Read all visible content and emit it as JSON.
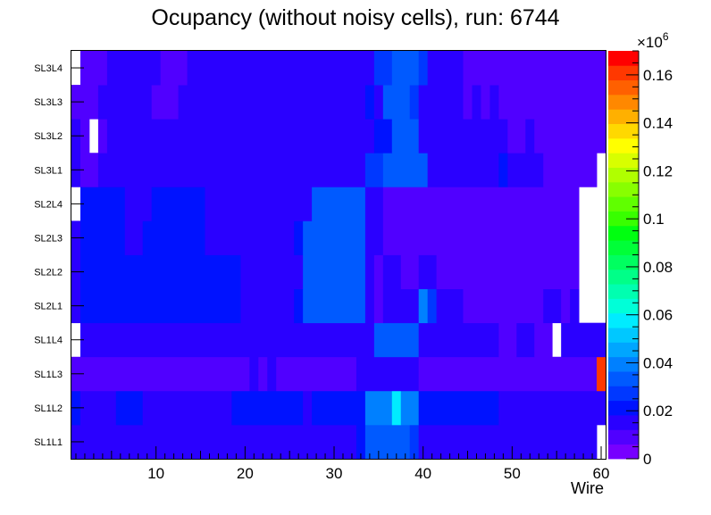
{
  "chart_data": {
    "type": "heatmap",
    "title": "Ocupancy (without noisy cells), run: 6744",
    "xlabel": "Wire",
    "ylabel": "",
    "x_range": [
      0.5,
      60.5
    ],
    "x_ticks": [
      10,
      20,
      30,
      40,
      50,
      60
    ],
    "y_categories": [
      "SL1L1",
      "SL1L2",
      "SL1L3",
      "SL1L4",
      "SL2L1",
      "SL2L2",
      "SL2L3",
      "SL2L4",
      "SL3L1",
      "SL3L2",
      "SL3L3",
      "SL3L4"
    ],
    "z_range": [
      0,
      0.17
    ],
    "z_ticks": [
      0,
      0.02,
      0.04,
      0.06,
      0.08,
      0.1,
      0.12,
      0.14,
      0.16
    ],
    "z_multiplier": "×10",
    "z_exponent": "6",
    "palette": [
      "#7700ff",
      "#5000ff",
      "#2a00ff",
      "#0012ff",
      "#0038ff",
      "#005aff",
      "#0080ff",
      "#00a6ff",
      "#00c8ff",
      "#00ecff",
      "#00ffd8",
      "#00ffb0",
      "#00ff88",
      "#00ff60",
      "#00ff38",
      "#00ff10",
      "#38ff00",
      "#60ff00",
      "#88ff00",
      "#b0ff00",
      "#d8ff00",
      "#ffff00",
      "#ffd800",
      "#ffb000",
      "#ff8800",
      "#ff6000",
      "#ff3800",
      "#ff0000"
    ],
    "rows": {
      "SL1L1": [
        [
          1,
          32,
          0.014
        ],
        [
          33,
          33,
          0.02
        ],
        [
          34,
          38,
          0.032
        ],
        [
          39,
          39,
          0.028
        ],
        [
          40,
          59,
          0.014
        ],
        [
          60,
          60,
          0
        ],
        [
          61,
          61,
          0.014
        ]
      ],
      "SL1L2": [
        [
          1,
          1,
          0.02
        ],
        [
          2,
          5,
          0.014
        ],
        [
          6,
          8,
          0.022
        ],
        [
          9,
          18,
          0.014
        ],
        [
          19,
          26,
          0.021
        ],
        [
          27,
          27,
          0.014
        ],
        [
          28,
          33,
          0.021
        ],
        [
          34,
          36,
          0.042
        ],
        [
          37,
          37,
          0.055
        ],
        [
          38,
          39,
          0.042
        ],
        [
          40,
          48,
          0.02
        ],
        [
          49,
          61,
          0.014
        ]
      ],
      "SL1L3": [
        [
          1,
          20,
          0.009
        ],
        [
          21,
          21,
          0.014
        ],
        [
          22,
          22,
          0.009
        ],
        [
          23,
          23,
          0.014
        ],
        [
          24,
          32,
          0.009
        ],
        [
          33,
          39,
          0.014
        ],
        [
          40,
          59,
          0.009
        ],
        [
          60,
          60,
          0.16
        ],
        [
          61,
          61,
          0.009
        ]
      ],
      "SL1L4": [
        [
          1,
          1,
          0
        ],
        [
          2,
          34,
          0.014
        ],
        [
          35,
          39,
          0.032
        ],
        [
          40,
          48,
          0.014
        ],
        [
          49,
          50,
          0.009
        ],
        [
          51,
          52,
          0.014
        ],
        [
          53,
          54,
          0.009
        ],
        [
          55,
          55,
          0
        ],
        [
          56,
          61,
          0.014
        ]
      ],
      "SL2L1": [
        [
          1,
          1,
          0.014
        ],
        [
          2,
          19,
          0.021
        ],
        [
          20,
          25,
          0.014
        ],
        [
          26,
          26,
          0.021
        ],
        [
          27,
          33,
          0.032
        ],
        [
          34,
          34,
          0.014
        ],
        [
          35,
          35,
          0.009
        ],
        [
          36,
          39,
          0.014
        ],
        [
          40,
          40,
          0.042
        ],
        [
          41,
          41,
          0.03
        ],
        [
          42,
          44,
          0.014
        ],
        [
          45,
          53,
          0.009
        ],
        [
          54,
          55,
          0.014
        ],
        [
          56,
          56,
          0.009
        ],
        [
          57,
          57,
          0.014
        ],
        [
          58,
          61,
          0
        ]
      ],
      "SL2L2": [
        [
          1,
          1,
          0.014
        ],
        [
          2,
          2,
          0.021
        ],
        [
          3,
          7,
          0.024
        ],
        [
          8,
          19,
          0.021
        ],
        [
          20,
          26,
          0.014
        ],
        [
          27,
          33,
          0.032
        ],
        [
          34,
          34,
          0.014
        ],
        [
          35,
          35,
          0.009
        ],
        [
          36,
          37,
          0.014
        ],
        [
          38,
          39,
          0.009
        ],
        [
          40,
          41,
          0.014
        ],
        [
          42,
          53,
          0.009
        ],
        [
          54,
          56,
          0.009
        ],
        [
          57,
          57,
          0.009
        ],
        [
          58,
          61,
          0
        ]
      ],
      "SL2L3": [
        [
          1,
          1,
          0.014
        ],
        [
          2,
          2,
          0.021
        ],
        [
          3,
          6,
          0.024
        ],
        [
          7,
          8,
          0.014
        ],
        [
          9,
          15,
          0.021
        ],
        [
          16,
          25,
          0.014
        ],
        [
          26,
          26,
          0.021
        ],
        [
          27,
          33,
          0.032
        ],
        [
          34,
          35,
          0.014
        ],
        [
          36,
          56,
          0.009
        ],
        [
          57,
          57,
          0.009
        ],
        [
          58,
          61,
          0
        ]
      ],
      "SL2L4": [
        [
          1,
          1,
          0
        ],
        [
          2,
          2,
          0.021
        ],
        [
          3,
          6,
          0.024
        ],
        [
          7,
          9,
          0.014
        ],
        [
          10,
          15,
          0.021
        ],
        [
          16,
          27,
          0.014
        ],
        [
          28,
          33,
          0.032
        ],
        [
          34,
          35,
          0.014
        ],
        [
          36,
          53,
          0.009
        ],
        [
          54,
          56,
          0.009
        ],
        [
          57,
          57,
          0.009
        ],
        [
          58,
          61,
          0
        ]
      ],
      "SL3L1": [
        [
          1,
          1,
          0.014
        ],
        [
          2,
          3,
          0.009
        ],
        [
          4,
          33,
          0.014
        ],
        [
          34,
          35,
          0.027
        ],
        [
          36,
          40,
          0.036
        ],
        [
          41,
          48,
          0.014
        ],
        [
          49,
          49,
          0.02
        ],
        [
          50,
          53,
          0.014
        ],
        [
          54,
          59,
          0.009
        ],
        [
          60,
          60,
          0
        ]
      ],
      "SL3L2": [
        [
          1,
          1,
          0.014
        ],
        [
          2,
          2,
          0.009
        ],
        [
          3,
          3,
          0
        ],
        [
          4,
          4,
          0.009
        ],
        [
          5,
          34,
          0.014
        ],
        [
          35,
          36,
          0.024
        ],
        [
          37,
          39,
          0.036
        ],
        [
          40,
          49,
          0.014
        ],
        [
          50,
          51,
          0.009
        ],
        [
          52,
          52,
          0.014
        ],
        [
          53,
          61,
          0.009
        ]
      ],
      "SL3L3": [
        [
          1,
          3,
          0.009
        ],
        [
          4,
          9,
          0.014
        ],
        [
          10,
          12,
          0.009
        ],
        [
          13,
          33,
          0.014
        ],
        [
          34,
          34,
          0.024
        ],
        [
          35,
          35,
          0.014
        ],
        [
          36,
          38,
          0.036
        ],
        [
          39,
          39,
          0.027
        ],
        [
          40,
          44,
          0.014
        ],
        [
          45,
          45,
          0.009
        ],
        [
          46,
          46,
          0.014
        ],
        [
          47,
          47,
          0.009
        ],
        [
          48,
          48,
          0.014
        ],
        [
          49,
          61,
          0.009
        ]
      ],
      "SL3L4": [
        [
          1,
          1,
          0
        ],
        [
          2,
          4,
          0.009
        ],
        [
          5,
          10,
          0.014
        ],
        [
          11,
          13,
          0.009
        ],
        [
          14,
          34,
          0.014
        ],
        [
          35,
          36,
          0.027
        ],
        [
          37,
          39,
          0.036
        ],
        [
          40,
          40,
          0.027
        ],
        [
          41,
          44,
          0.014
        ],
        [
          45,
          61,
          0.009
        ]
      ]
    }
  }
}
